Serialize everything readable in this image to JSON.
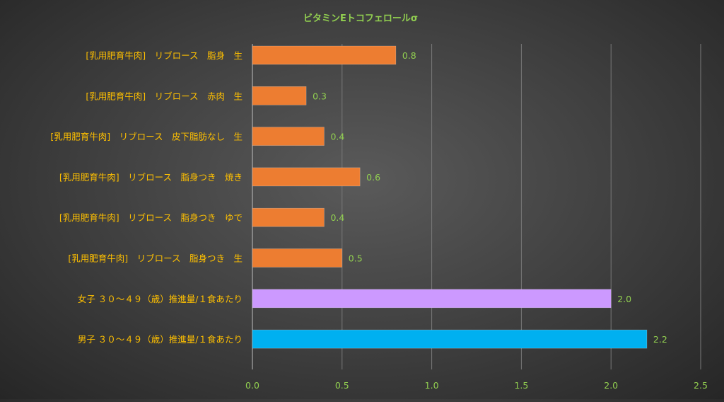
{
  "chart_data": {
    "type": "bar",
    "orientation": "horizontal",
    "title": "ビタミンEトコフェロールσ",
    "categories": [
      "[乳用肥育牛肉]　リブロース　脂身　生",
      "[乳用肥育牛肉]　リブロース　赤肉　生",
      "[乳用肥育牛肉]　リブロース　皮下脂肪なし　生",
      "[乳用肥育牛肉]　リブロース　脂身つき　焼き",
      "[乳用肥育牛肉]　リブロース　脂身つき　ゆで",
      "[乳用肥育牛肉]　リブロース　脂身つき　生",
      "女子 ３０～４９（歳）推進量/１食あたり",
      "男子 ３０～４９（歳）推進量/１食あたり"
    ],
    "values": [
      0.8,
      0.3,
      0.4,
      0.6,
      0.4,
      0.5,
      2.0,
      2.2
    ],
    "value_labels": [
      "0.8",
      "0.3",
      "0.4",
      "0.6",
      "0.4",
      "0.5",
      "2.0",
      "2.2"
    ],
    "bar_colors": [
      "#ED7D31",
      "#ED7D31",
      "#ED7D31",
      "#ED7D31",
      "#ED7D31",
      "#ED7D31",
      "#CC99FF",
      "#00B0F0"
    ],
    "xlim": [
      0,
      2.5
    ],
    "x_ticks": [
      "0.0",
      "0.5",
      "1.0",
      "1.5",
      "2.0",
      "2.5"
    ],
    "x_tick_values": [
      0,
      0.5,
      1.0,
      1.5,
      2.0,
      2.5
    ],
    "grid": true,
    "legend": "none",
    "colors": {
      "title": "#92D050",
      "category_label": "#FFC000",
      "value_label": "#92D050",
      "tick_label": "#92D050",
      "grid": "#7a7a7a"
    }
  }
}
